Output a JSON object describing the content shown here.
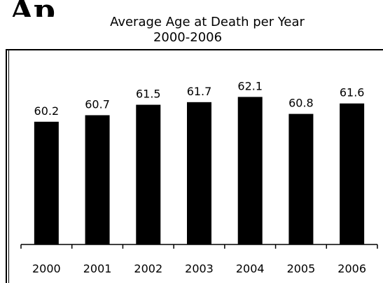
{
  "chart_data": {
    "type": "bar",
    "title": "Average Age at Death per Year",
    "subtitle": "2000-2006",
    "xlabel": "",
    "ylabel": "",
    "categories": [
      "2000",
      "2001",
      "2002",
      "2003",
      "2004",
      "2005",
      "2006"
    ],
    "values": [
      60.2,
      60.7,
      61.5,
      61.7,
      62.1,
      60.8,
      61.6
    ],
    "data_labels": [
      "60.2",
      "60.7",
      "61.5",
      "61.7",
      "62.1",
      "60.8",
      "61.6"
    ],
    "ylim": [
      50.8,
      63.3
    ],
    "grid": false,
    "legend": "none",
    "colors": {
      "bar": "#000000",
      "axis": "#000000",
      "text": "#000000"
    }
  }
}
